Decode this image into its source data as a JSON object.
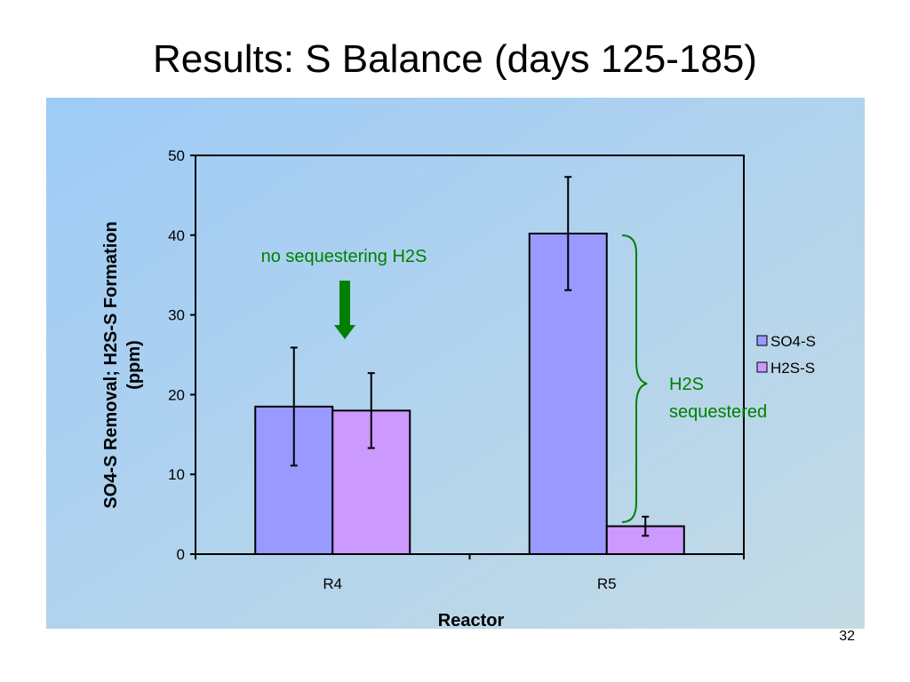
{
  "slide": {
    "title": "Results: S Balance (days 125-185)",
    "page_number": "32"
  },
  "chart_data": {
    "type": "bar",
    "xlabel": "Reactor",
    "ylabel_line1": "SO4-S Removal; H2S-S Formation",
    "ylabel_line2": "(ppm)",
    "ylim": [
      0,
      50
    ],
    "yticks": [
      0,
      10,
      20,
      30,
      40,
      50
    ],
    "categories": [
      "R4",
      "R5"
    ],
    "series": [
      {
        "name": "SO4-S",
        "values": [
          18.5,
          40.2
        ],
        "errors": [
          7.4,
          7.1
        ],
        "color": "#9999ff"
      },
      {
        "name": "H2S-S",
        "values": [
          18.0,
          3.5
        ],
        "errors": [
          4.7,
          1.2
        ],
        "color": "#cc99ff"
      }
    ],
    "legend_position": "right",
    "annotations": {
      "no_sequestering": "no sequestering H2S",
      "sequestered_line1": "H2S",
      "sequestered_line2": "sequestered",
      "color": "#008000"
    }
  },
  "colors": {
    "panel_gradient_start": "#9ecbf7",
    "panel_gradient_end": "#c4dbe4",
    "annotation": "#008000"
  }
}
